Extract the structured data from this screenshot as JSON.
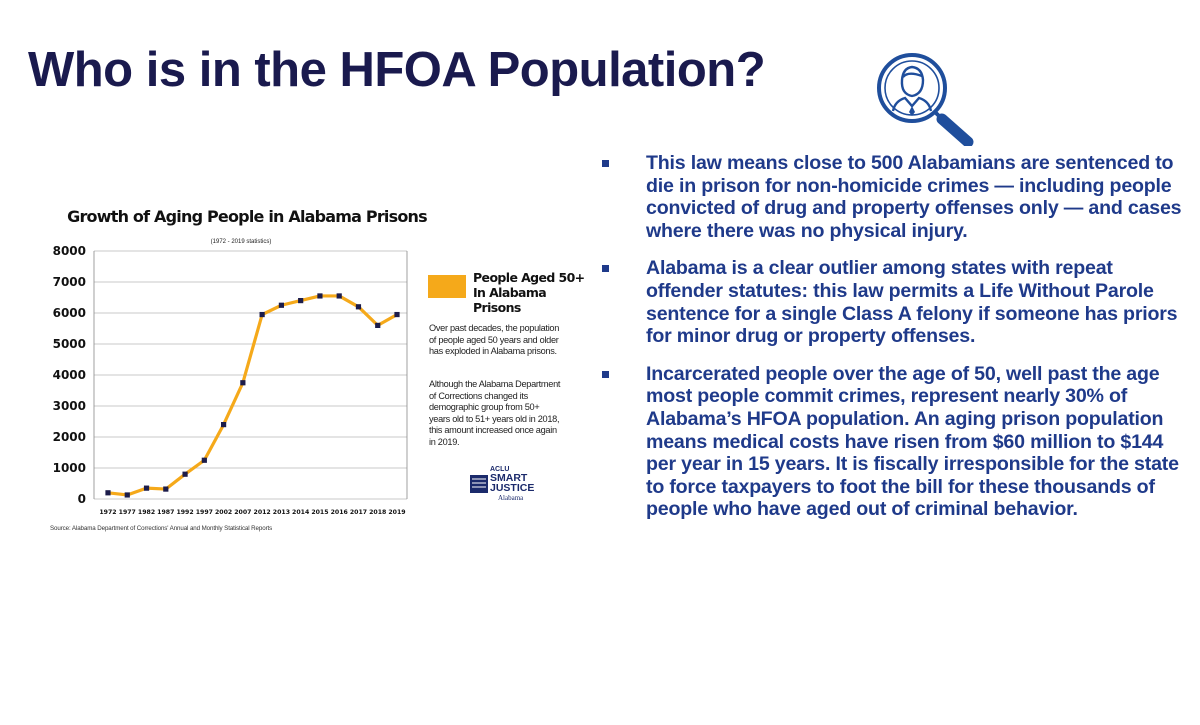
{
  "slide": {
    "title": "Who is in the HFOA Population?",
    "icon": "person-magnifier-icon"
  },
  "chart_data": {
    "type": "line",
    "title": "Growth of Aging People in Alabama Prisons",
    "subtitle": "(1972 - 2019 statistics)",
    "categories": [
      "1972",
      "1977",
      "1982",
      "1987",
      "1992",
      "1997",
      "2002",
      "2007",
      "2012",
      "2013",
      "2014",
      "2015",
      "2016",
      "2017",
      "2018",
      "2019"
    ],
    "series": [
      {
        "name": "People Aged 50+ In Alabama Prisons",
        "values": [
          200,
          130,
          350,
          320,
          800,
          1250,
          2400,
          3750,
          5950,
          6250,
          6400,
          6550,
          6550,
          6200,
          5600,
          5950
        ]
      }
    ],
    "yticks": [
      "0",
      "1000",
      "2000",
      "3000",
      "4000",
      "5000",
      "6000",
      "7000",
      "8000"
    ],
    "ylim": [
      0,
      8000
    ],
    "grid": "horizontal",
    "legend_position": "right",
    "line_color": "#f5a91a",
    "marker_color": "#1c1c4a",
    "legend": {
      "line1": "People Aged 50+",
      "line2": "In Alabama Prisons"
    },
    "notes": [
      "Over past decades, the population of people aged 50 years and older has exploded in Alabama prisons.",
      "Although the Alabama Department of Corrections changed its demographic group from 50+ years old to 51+ years old in 2018, this amount increased once again in 2019."
    ],
    "source": "Source: Alabama Department of Corrections' Annual and Monthly Statistical Reports",
    "logo": {
      "top": "ACLU",
      "line1": "SMART",
      "line2": "JUSTICE",
      "state": "Alabama"
    }
  },
  "bullets": [
    "This law means close to 500 Alabamians are sentenced to die in prison for non-homicide crimes — including people convicted of drug and property offenses only — and cases where there was no physical injury.",
    "Alabama is a clear outlier among states with repeat offender statutes: this law permits a Life Without Parole sentence for a single Class A felony if someone has priors for minor drug or property offenses.",
    "Incarcerated people over the age of 50, well past the age most people commit crimes, represent nearly 30% of Alabama’s HFOA population. An aging prison population means medical costs have risen from $60 million to $144 per year in 15 years. It is fiscally irresponsible for the state to force taxpayers to foot the bill for these thousands of people who have aged out of criminal behavior."
  ],
  "colors": {
    "title": "#1a1a4e",
    "bullet_text": "#1f3a8a",
    "accent": "#f5a91a"
  }
}
